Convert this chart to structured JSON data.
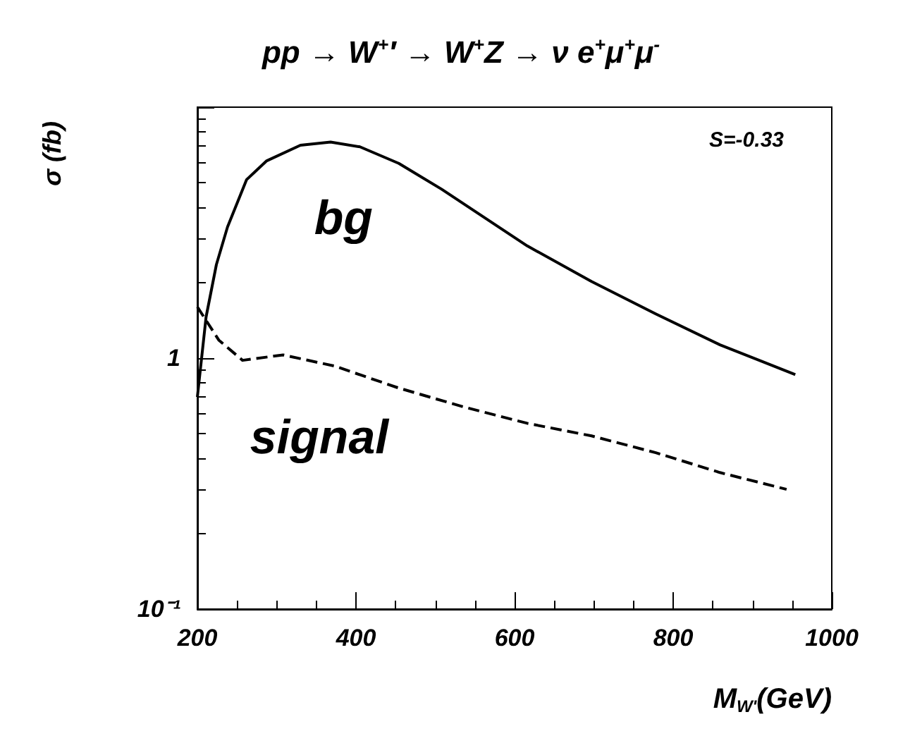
{
  "chart_data": {
    "type": "line",
    "title": "pp → W$^{+}$′ → W$^{+}$Z → ν e$^{+}$μ$^{+}$μ$^{-}$",
    "xlabel": "M$_{W'}$(GeV)",
    "ylabel": "σ (fb)",
    "log": "y",
    "xlim": [
      200,
      1000
    ],
    "xticks": [
      200,
      400,
      600,
      800,
      1000
    ],
    "ylim": [
      0.1,
      10
    ],
    "yticks": [
      {
        "value": 0.1,
        "label": "10⁻¹"
      },
      1,
      {
        "value": 10,
        "label": null
      }
    ],
    "legend": false,
    "grid": false,
    "marker": "none",
    "annotations": [
      "S=-0.33"
    ],
    "series": [
      {
        "name": "bg",
        "color": "#000000",
        "line_style": "solid",
        "x": [
          200,
          211,
          224,
          238,
          262,
          287,
          330,
          368,
          405,
          454,
          508,
          562,
          616,
          697,
          778,
          859,
          954
        ],
        "values": [
          0.7,
          1.46,
          2.36,
          3.33,
          5.14,
          6.1,
          7.05,
          7.26,
          6.95,
          5.97,
          4.71,
          3.63,
          2.8,
          2.02,
          1.5,
          1.13,
          0.86
        ]
      },
      {
        "name": "signal",
        "color": "#000000",
        "line_style": "dashed",
        "x": [
          200,
          227,
          257,
          308,
          373,
          454,
          535,
          616,
          697,
          778,
          859,
          943
        ],
        "values": [
          1.6,
          1.18,
          0.98,
          1.03,
          0.93,
          0.76,
          0.64,
          0.55,
          0.49,
          0.42,
          0.35,
          0.3
        ]
      }
    ]
  }
}
